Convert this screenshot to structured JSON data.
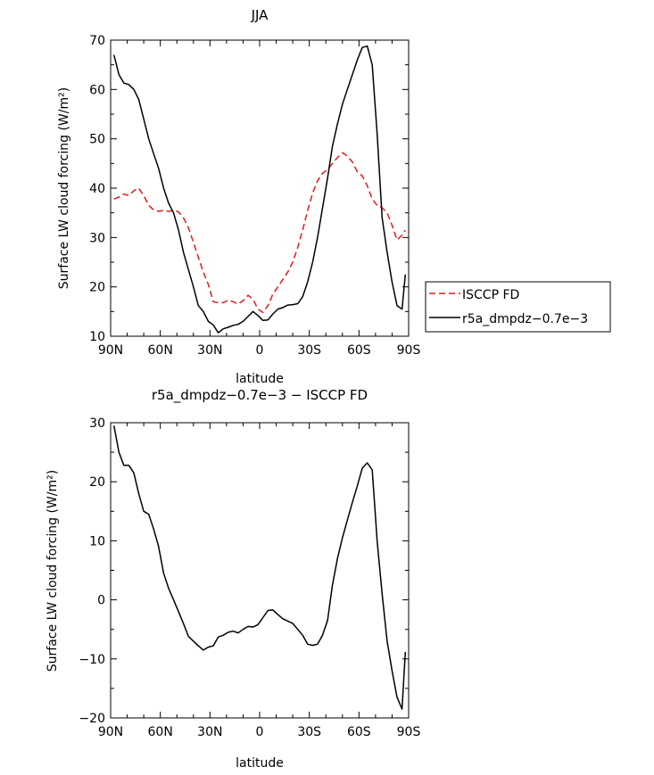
{
  "chart_data": [
    {
      "type": "line",
      "title": "JJA",
      "xlabel": "latitude",
      "ylabel": "Surface LW cloud forcing (W/m²)",
      "xlim": [
        90,
        -90
      ],
      "ylim": [
        10,
        70
      ],
      "xticks": [
        90,
        60,
        30,
        0,
        -30,
        -60,
        -90
      ],
      "xtick_labels": [
        "90N",
        "60N",
        "30N",
        "0",
        "30S",
        "60S",
        "90S"
      ],
      "yticks": [
        10,
        20,
        30,
        40,
        50,
        60,
        70
      ],
      "ytick_labels": [
        "10",
        "20",
        "30",
        "40",
        "50",
        "60",
        "70"
      ],
      "legend_position": "right",
      "series": [
        {
          "name": "ISCCP FD",
          "color": "#e31a1c",
          "dash": "dashed",
          "x": [
            88,
            85,
            82,
            79,
            76,
            73,
            70,
            67,
            64,
            61,
            58,
            55,
            52,
            49,
            46,
            43,
            40,
            37,
            34,
            31,
            28,
            25,
            22,
            19,
            16,
            13,
            10,
            7,
            4,
            1,
            -2,
            -5,
            -8,
            -11,
            -14,
            -17,
            -20,
            -23,
            -26,
            -29,
            -32,
            -35,
            -38,
            -41,
            -44,
            -47,
            -50,
            -53,
            -56,
            -59,
            -62,
            -65,
            -68,
            -71,
            -74,
            -77,
            -80,
            -83,
            -86,
            -88
          ],
          "y": [
            37.8,
            38.2,
            38.8,
            38.5,
            39.5,
            40,
            38.5,
            36.5,
            35.6,
            35.3,
            35.5,
            35.3,
            35.5,
            35.2,
            34,
            32,
            29,
            26,
            23,
            20.5,
            17,
            16.8,
            16.8,
            17.3,
            17,
            16.5,
            17.2,
            18.3,
            17.5,
            15.5,
            14.8,
            16.2,
            18.5,
            20,
            21.5,
            23,
            25,
            28,
            31.5,
            35.5,
            39,
            41.5,
            43,
            43.8,
            45,
            46.2,
            47.2,
            46.5,
            45.3,
            43.3,
            42.5,
            40.5,
            37.8,
            36.5,
            36,
            35,
            32.5,
            29.5,
            30.5,
            31.5
          ]
        },
        {
          "name": "r5a_dmpdz−0.7e−3",
          "color": "#000000",
          "dash": "solid",
          "x": [
            88,
            85,
            82,
            79,
            76,
            73,
            70,
            67,
            64,
            61,
            58,
            55,
            52,
            49,
            46,
            43,
            40,
            37,
            34,
            31,
            28,
            25,
            22,
            19,
            16,
            13,
            10,
            7,
            4,
            1,
            -2,
            -5,
            -8,
            -11,
            -14,
            -17,
            -20,
            -23,
            -26,
            -29,
            -32,
            -35,
            -38,
            -41,
            -44,
            -47,
            -50,
            -53,
            -56,
            -59,
            -62,
            -65,
            -68,
            -71,
            -74,
            -77,
            -80,
            -83,
            -86,
            -88
          ],
          "y": [
            67,
            63,
            61.3,
            61,
            60,
            58,
            54,
            50,
            47,
            44,
            40,
            37,
            35,
            31.5,
            27,
            23.5,
            20,
            16.2,
            15,
            13,
            12.3,
            10.7,
            11.5,
            11.8,
            12.2,
            12.4,
            13,
            14,
            15,
            14.2,
            13.2,
            13.3,
            14.5,
            15.5,
            15.8,
            16.3,
            16.4,
            16.6,
            18,
            21,
            25,
            30,
            36,
            42,
            48.5,
            53,
            57,
            60,
            63,
            66,
            68.5,
            68.8,
            65,
            51,
            34,
            27,
            21,
            16.2,
            15.5,
            22.5
          ]
        }
      ]
    },
    {
      "type": "line",
      "title": "r5a_dmpdz−0.7e−3 − ISCCP FD",
      "xlabel": "latitude",
      "ylabel": "Surface LW cloud forcing (W/m²)",
      "xlim": [
        90,
        -90
      ],
      "ylim": [
        -20,
        30
      ],
      "xticks": [
        90,
        60,
        30,
        0,
        -30,
        -60,
        -90
      ],
      "xtick_labels": [
        "90N",
        "60N",
        "30N",
        "0",
        "30S",
        "60S",
        "90S"
      ],
      "yticks": [
        -20,
        -10,
        0,
        10,
        20,
        30
      ],
      "ytick_labels": [
        "−20",
        "−10",
        "0",
        "10",
        "20",
        "30"
      ],
      "series": [
        {
          "color": "#000000",
          "dash": "solid",
          "x": [
            88,
            85,
            82,
            79,
            76,
            73,
            70,
            67,
            64,
            61,
            58,
            55,
            52,
            49,
            46,
            43,
            40,
            37,
            34,
            31,
            28,
            25,
            22,
            19,
            16,
            13,
            10,
            7,
            4,
            1,
            -2,
            -5,
            -8,
            -11,
            -14,
            -17,
            -20,
            -23,
            -26,
            -29,
            -32,
            -35,
            -38,
            -41,
            -44,
            -47,
            -50,
            -53,
            -56,
            -59,
            -62,
            -65,
            -68,
            -71,
            -74,
            -77,
            -80,
            -83,
            -86,
            -88
          ],
          "y": [
            29.5,
            25,
            22.8,
            22.8,
            21.5,
            18,
            15,
            14.5,
            12,
            9,
            4.5,
            2,
            0,
            -2,
            -4,
            -6.2,
            -7,
            -7.8,
            -8.5,
            -8,
            -7.8,
            -6.3,
            -6,
            -5.5,
            -5.3,
            -5.6,
            -5,
            -4.5,
            -4.6,
            -4.2,
            -3,
            -1.8,
            -1.7,
            -2.5,
            -3.2,
            -3.6,
            -4,
            -5,
            -6,
            -7.5,
            -7.7,
            -7.5,
            -6,
            -3.5,
            2.5,
            7,
            10.5,
            13.5,
            16.5,
            19.3,
            22.3,
            23.2,
            22,
            10,
            1,
            -7,
            -12,
            -16.5,
            -18.5,
            -8.8
          ]
        }
      ]
    }
  ]
}
